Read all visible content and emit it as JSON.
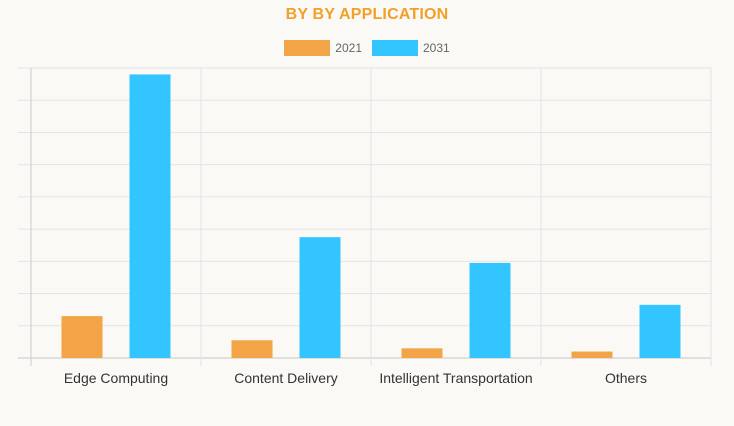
{
  "chart_data": {
    "type": "bar",
    "title": "BY BY APPLICATION",
    "categories": [
      "Edge Computing",
      "Content Delivery",
      "Intelligent Transportation",
      "Others"
    ],
    "series": [
      {
        "name": "2021",
        "color": "#f2a447",
        "values": [
          13,
          5.5,
          3,
          2
        ]
      },
      {
        "name": "2031",
        "color": "#33c5ff",
        "values": [
          88,
          37.5,
          29.5,
          16.5
        ]
      }
    ],
    "ylim": [
      0,
      90
    ],
    "grid": true,
    "legend_position": "top-center",
    "title_color": "#f2a028"
  }
}
